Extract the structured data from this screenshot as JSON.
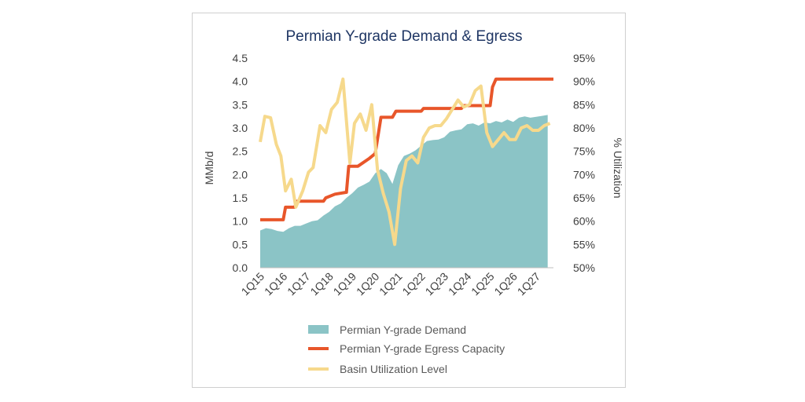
{
  "chart_data": {
    "type": "area+line",
    "title": "Permian Y-grade Demand & Egress",
    "ylabel": "MMb/d",
    "y2label": "% Utilization",
    "ylim": [
      0,
      4.5
    ],
    "y2lim": [
      50,
      95
    ],
    "y_ticks": [
      "0.0",
      "0.5",
      "1.0",
      "1.5",
      "2.0",
      "2.5",
      "3.0",
      "3.5",
      "4.0",
      "4.5"
    ],
    "y2_ticks": [
      "50%",
      "55%",
      "60%",
      "65%",
      "70%",
      "75%",
      "80%",
      "85%",
      "90%",
      "95%"
    ],
    "x_tick_labels": [
      "1Q15",
      "1Q16",
      "1Q17",
      "1Q18",
      "1Q19",
      "1Q20",
      "1Q21",
      "1Q22",
      "1Q23",
      "1Q24",
      "1Q25",
      "1Q26",
      "1Q27"
    ],
    "x_start": 2015.0,
    "x_end": 2027.75,
    "colors": {
      "demand": "#8bc4c6",
      "egress": "#e8562a",
      "utilization": "#f6d98c",
      "title": "#1f3664"
    },
    "series": [
      {
        "name": "Permian Y-grade Demand",
        "kind": "area",
        "points": [
          [
            2015.0,
            0.8
          ],
          [
            2015.25,
            0.85
          ],
          [
            2015.5,
            0.83
          ],
          [
            2015.75,
            0.79
          ],
          [
            2016.0,
            0.77
          ],
          [
            2016.25,
            0.85
          ],
          [
            2016.5,
            0.9
          ],
          [
            2016.75,
            0.9
          ],
          [
            2017.0,
            0.95
          ],
          [
            2017.25,
            1.0
          ],
          [
            2017.5,
            1.02
          ],
          [
            2017.75,
            1.12
          ],
          [
            2018.0,
            1.2
          ],
          [
            2018.25,
            1.32
          ],
          [
            2018.5,
            1.38
          ],
          [
            2018.75,
            1.5
          ],
          [
            2019.0,
            1.6
          ],
          [
            2019.25,
            1.72
          ],
          [
            2019.5,
            1.78
          ],
          [
            2019.75,
            1.85
          ],
          [
            2020.0,
            2.03
          ],
          [
            2020.25,
            2.12
          ],
          [
            2020.5,
            2.03
          ],
          [
            2020.75,
            1.8
          ],
          [
            2021.0,
            2.2
          ],
          [
            2021.25,
            2.4
          ],
          [
            2021.5,
            2.45
          ],
          [
            2021.75,
            2.52
          ],
          [
            2022.0,
            2.62
          ],
          [
            2022.25,
            2.72
          ],
          [
            2022.5,
            2.74
          ],
          [
            2022.75,
            2.75
          ],
          [
            2023.0,
            2.8
          ],
          [
            2023.25,
            2.92
          ],
          [
            2023.5,
            2.95
          ],
          [
            2023.75,
            2.97
          ],
          [
            2024.0,
            3.08
          ],
          [
            2024.25,
            3.1
          ],
          [
            2024.5,
            3.05
          ],
          [
            2024.75,
            3.12
          ],
          [
            2025.0,
            3.1
          ],
          [
            2025.25,
            3.15
          ],
          [
            2025.5,
            3.12
          ],
          [
            2025.75,
            3.18
          ],
          [
            2026.0,
            3.13
          ],
          [
            2026.25,
            3.22
          ],
          [
            2026.5,
            3.25
          ],
          [
            2026.75,
            3.22
          ],
          [
            2027.0,
            3.24
          ],
          [
            2027.25,
            3.26
          ],
          [
            2027.5,
            3.28
          ]
        ]
      },
      {
        "name": "Permian Y-grade Egress Capacity",
        "kind": "line",
        "points": [
          [
            2015.0,
            1.03
          ],
          [
            2016.0,
            1.03
          ],
          [
            2016.1,
            1.3
          ],
          [
            2016.5,
            1.3
          ],
          [
            2016.6,
            1.43
          ],
          [
            2017.75,
            1.43
          ],
          [
            2017.85,
            1.5
          ],
          [
            2018.25,
            1.58
          ],
          [
            2018.75,
            1.62
          ],
          [
            2018.85,
            2.18
          ],
          [
            2019.25,
            2.18
          ],
          [
            2019.75,
            2.35
          ],
          [
            2020.0,
            2.45
          ],
          [
            2020.25,
            3.23
          ],
          [
            2020.75,
            3.23
          ],
          [
            2020.9,
            3.36
          ],
          [
            2022.0,
            3.36
          ],
          [
            2022.1,
            3.42
          ],
          [
            2023.75,
            3.42
          ],
          [
            2023.85,
            3.48
          ],
          [
            2025.0,
            3.48
          ],
          [
            2025.1,
            3.88
          ],
          [
            2025.25,
            4.05
          ],
          [
            2027.75,
            4.05
          ]
        ]
      },
      {
        "name": "Basin Utilization Level",
        "kind": "line",
        "axis": "secondary",
        "points": [
          [
            2015.0,
            77
          ],
          [
            2015.2,
            82.5
          ],
          [
            2015.45,
            82.2
          ],
          [
            2015.7,
            76.5
          ],
          [
            2015.9,
            74
          ],
          [
            2016.1,
            66.5
          ],
          [
            2016.35,
            69
          ],
          [
            2016.55,
            63
          ],
          [
            2016.85,
            66.5
          ],
          [
            2017.1,
            70.5
          ],
          [
            2017.3,
            71.5
          ],
          [
            2017.6,
            80.5
          ],
          [
            2017.85,
            79
          ],
          [
            2018.1,
            84
          ],
          [
            2018.35,
            85.5
          ],
          [
            2018.6,
            90.5
          ],
          [
            2018.9,
            72.5
          ],
          [
            2019.1,
            81
          ],
          [
            2019.35,
            83
          ],
          [
            2019.6,
            79.5
          ],
          [
            2019.85,
            85
          ],
          [
            2020.1,
            71
          ],
          [
            2020.35,
            66
          ],
          [
            2020.6,
            62
          ],
          [
            2020.85,
            55
          ],
          [
            2021.1,
            67
          ],
          [
            2021.35,
            73
          ],
          [
            2021.6,
            74
          ],
          [
            2021.85,
            72.5
          ],
          [
            2022.1,
            78
          ],
          [
            2022.35,
            80
          ],
          [
            2022.6,
            80.5
          ],
          [
            2022.85,
            80.5
          ],
          [
            2023.1,
            82
          ],
          [
            2023.35,
            84
          ],
          [
            2023.6,
            86
          ],
          [
            2023.85,
            84.5
          ],
          [
            2024.1,
            85
          ],
          [
            2024.35,
            88
          ],
          [
            2024.6,
            89
          ],
          [
            2024.85,
            79
          ],
          [
            2025.1,
            76
          ],
          [
            2025.35,
            77.5
          ],
          [
            2025.6,
            79
          ],
          [
            2025.85,
            77.5
          ],
          [
            2026.1,
            77.5
          ],
          [
            2026.35,
            80
          ],
          [
            2026.6,
            80.5
          ],
          [
            2026.85,
            79.5
          ],
          [
            2027.1,
            79.5
          ],
          [
            2027.35,
            80.5
          ],
          [
            2027.6,
            81
          ]
        ]
      }
    ],
    "legend": [
      {
        "label": "Permian Y-grade Demand",
        "swatch": "area"
      },
      {
        "label": "Permian Y-grade Egress Capacity",
        "swatch": "line"
      },
      {
        "label": "Basin Utilization Level",
        "swatch": "line"
      }
    ],
    "legend_position": "bottom",
    "grid": false
  }
}
